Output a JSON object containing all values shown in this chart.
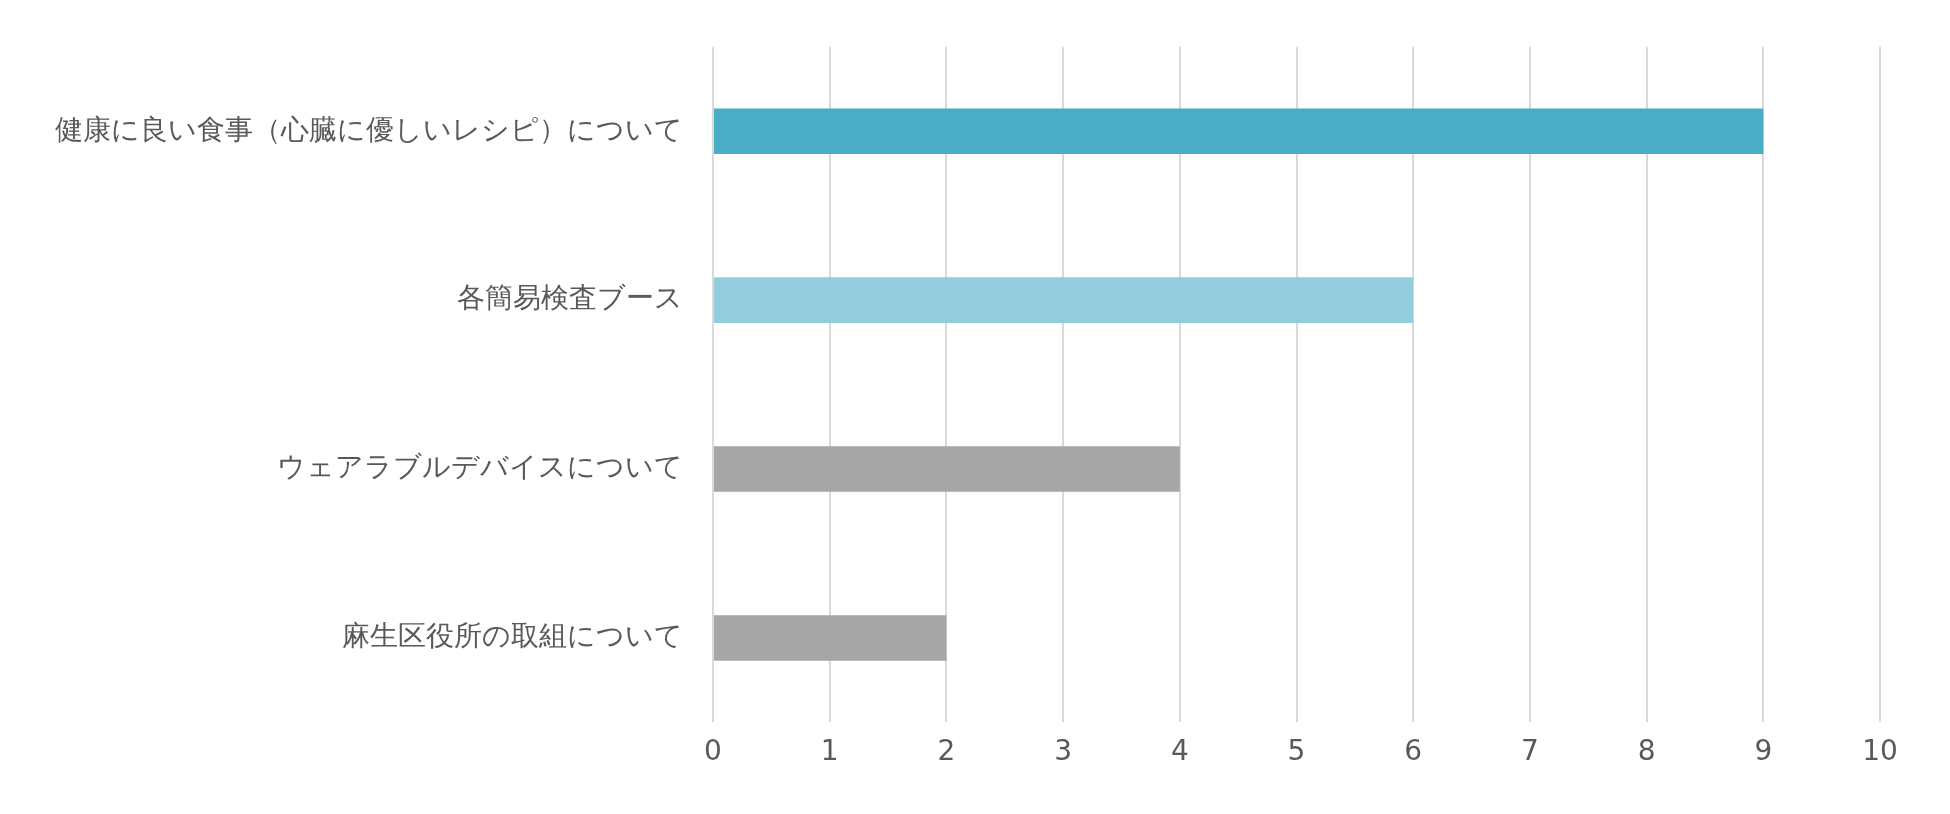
{
  "chart_data": {
    "type": "bar",
    "orientation": "horizontal",
    "categories": [
      "健康に良い食事（心臓に優しいレシピ）について",
      "各簡易検査ブース",
      "ウェアラブルデバイスについて",
      "麻生区役所の取組について"
    ],
    "values": [
      9,
      6,
      4,
      2
    ],
    "colors": [
      "#4bacc6",
      "#93cddd",
      "#a6a6a6",
      "#a6a6a6"
    ],
    "xlim": [
      0,
      10
    ],
    "xticks": [
      0,
      1,
      2,
      3,
      4,
      5,
      6,
      7,
      8,
      9,
      10
    ],
    "grid": "x",
    "legend": false
  }
}
